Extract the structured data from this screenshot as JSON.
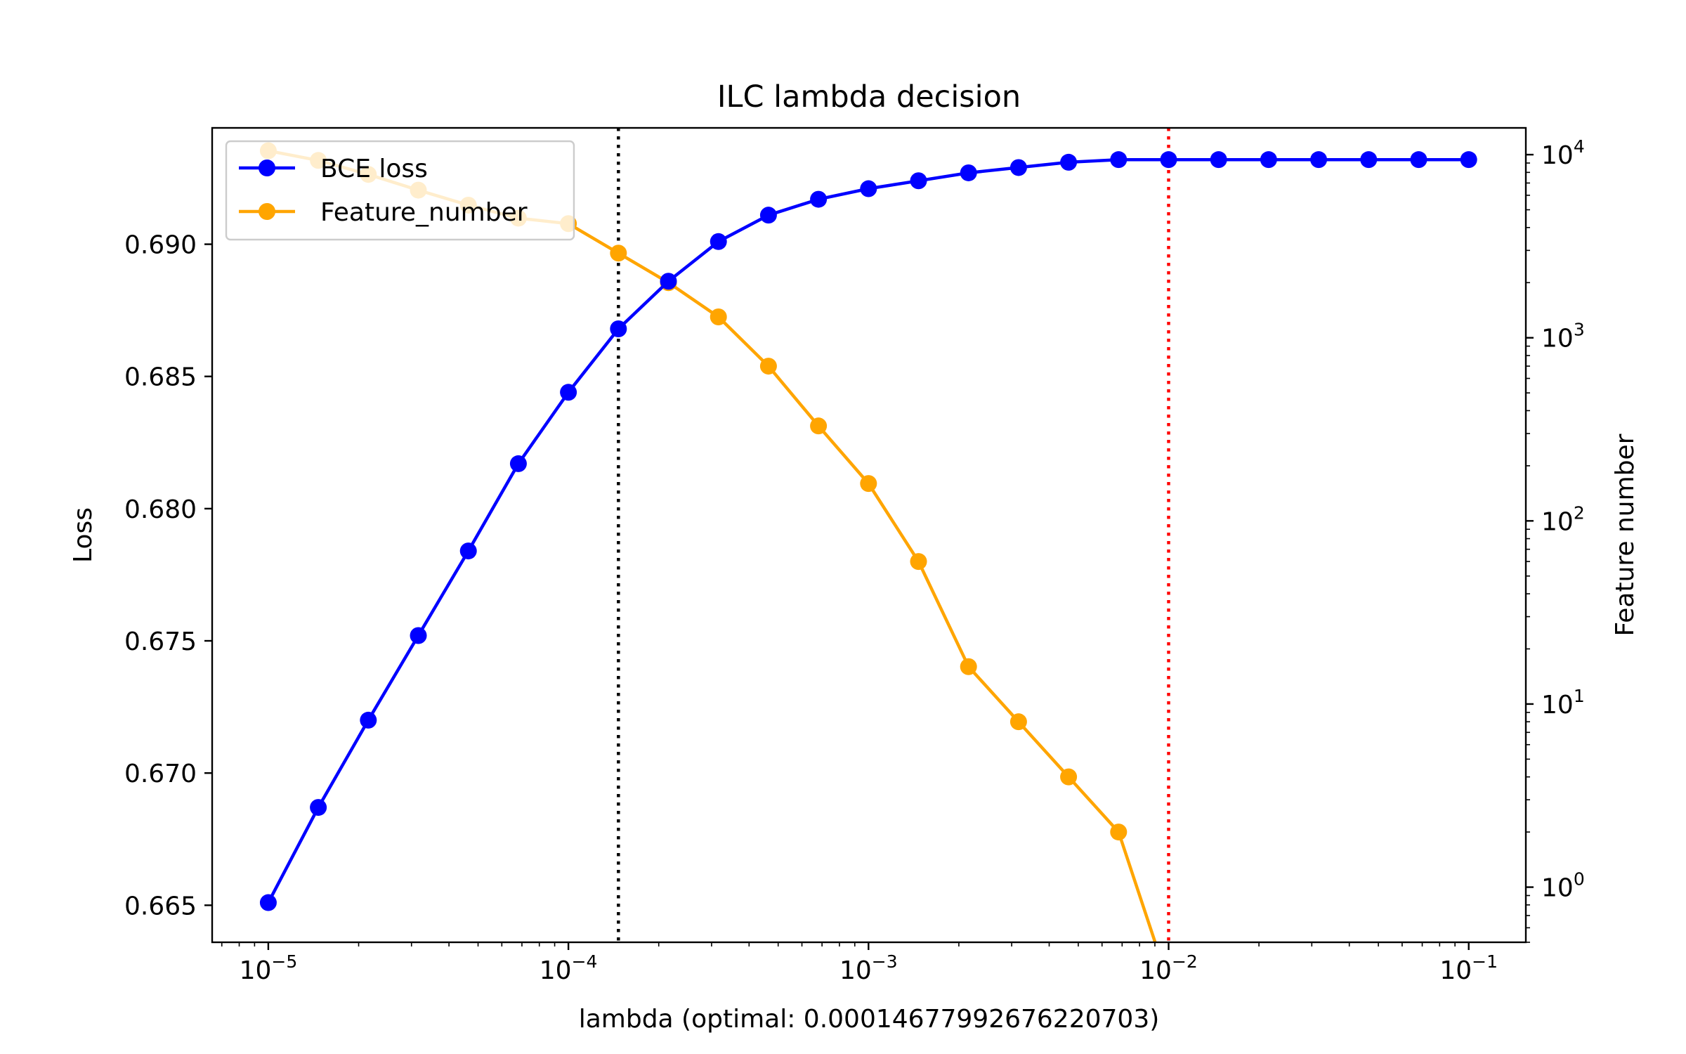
{
  "chart_data": {
    "type": "line",
    "title": "ILC lambda decision",
    "xlabel": "lambda (optimal: 0.00014677992676220703)",
    "ylabel": "Loss",
    "y2label": "Feature number",
    "x_scale": "log",
    "y2_scale": "log",
    "xlim": [
      6.5e-06,
      0.155
    ],
    "ylim": [
      0.6636,
      0.6944
    ],
    "y2lim": [
      0.5,
      14000
    ],
    "x_ticks": [
      {
        "value": 1e-05,
        "base": "10",
        "exp": "−5"
      },
      {
        "value": 0.0001,
        "base": "10",
        "exp": "−4"
      },
      {
        "value": 0.001,
        "base": "10",
        "exp": "−3"
      },
      {
        "value": 0.01,
        "base": "10",
        "exp": "−2"
      },
      {
        "value": 0.1,
        "base": "10",
        "exp": "−1"
      }
    ],
    "y_ticks": [
      "0.665",
      "0.670",
      "0.675",
      "0.680",
      "0.685",
      "0.690"
    ],
    "y2_ticks": [
      {
        "value": 1,
        "base": "10",
        "exp": "0"
      },
      {
        "value": 10,
        "base": "10",
        "exp": "1"
      },
      {
        "value": 100,
        "base": "10",
        "exp": "2"
      },
      {
        "value": 1000,
        "base": "10",
        "exp": "3"
      },
      {
        "value": 10000,
        "base": "10",
        "exp": "4"
      }
    ],
    "x": [
      1e-05,
      1.4678e-05,
      2.1544e-05,
      3.1623e-05,
      4.6416e-05,
      6.8129e-05,
      0.0001,
      0.00014678,
      0.00021544,
      0.00031623,
      0.00046416,
      0.00068129,
      0.001,
      0.0014678,
      0.0021544,
      0.0031623,
      0.0046416,
      0.0068129,
      0.01,
      0.014678,
      0.021544,
      0.031623,
      0.046416,
      0.068129,
      0.1
    ],
    "series": [
      {
        "name": "BCE loss",
        "axis": "left",
        "color": "#0000ff",
        "values": [
          0.6651,
          0.6687,
          0.672,
          0.6752,
          0.6784,
          0.6817,
          0.6844,
          0.6868,
          0.6886,
          0.6901,
          0.6911,
          0.6917,
          0.6921,
          0.6924,
          0.6927,
          0.6929,
          0.6931,
          0.6932,
          0.6932,
          0.6932,
          0.6932,
          0.6932,
          0.6932,
          0.6932,
          0.6932
        ]
      },
      {
        "name": "Feature_number",
        "axis": "right",
        "color": "#ffa500",
        "values": [
          10500,
          9300,
          7800,
          6400,
          5300,
          4500,
          4200,
          2900,
          2000,
          1300,
          700,
          330,
          160,
          60,
          16,
          8,
          4,
          2,
          0.3,
          null,
          null,
          null,
          null,
          null,
          null
        ]
      }
    ],
    "vlines": [
      {
        "x": 0.00014678,
        "color": "#000000",
        "style": "dotted"
      },
      {
        "x": 0.01,
        "color": "#ff0000",
        "style": "dotted"
      }
    ],
    "legend_position": "upper-left"
  }
}
